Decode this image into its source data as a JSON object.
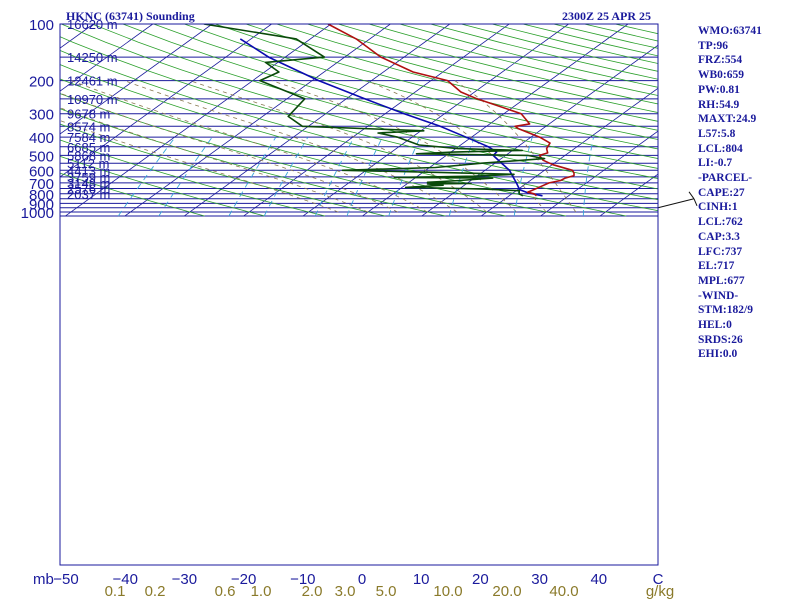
{
  "header": {
    "station": "HKNC (63741) Sounding",
    "valid_time": "2300Z 25 APR 25"
  },
  "indices": [
    "WMO:63741",
    "TP:96",
    "FRZ:554",
    "WB0:659",
    "PW:0.81",
    "RH:54.9",
    "MAXT:24.9",
    "L57:5.8",
    "LCL:804",
    "LI:-0.7",
    "-PARCEL-",
    "CAPE:27",
    "CINH:1",
    "LCL:762",
    "CAP:3.3",
    "LFC:737",
    "EL:717",
    "MPL:677",
    "-WIND-",
    "STM:182/9",
    "HEL:0",
    "SRDS:26",
    "EHI:0.0"
  ],
  "colors": {
    "frame": "#1a1a9c",
    "isobar": "#1a1a9c",
    "isotherm": "#1a1a9c",
    "dry_adiabat": "#2ca02c",
    "moist_adiabat": "#8a7a52",
    "mixing_ratio": "#3aa6d8",
    "temperature": "#b01010",
    "dewpoint": "#0a4a0a",
    "parcel": "#0a0ab0",
    "bottom_labels": "#8a7a2a",
    "height_labels": "#1a1a9c"
  },
  "chart_data": {
    "type": "skew-t log-p",
    "pressure_unit_label": "mb",
    "pressure_ticks": [
      "100",
      "200",
      "300",
      "400",
      "500",
      "600",
      "700",
      "800",
      "900",
      "1000"
    ],
    "temperature_ticks": [
      "−50",
      "−40",
      "−30",
      "−20",
      "−10",
      "0",
      "10",
      "20",
      "30",
      "40",
      "C"
    ],
    "mixing_ratio_ticks": [
      "0.1",
      "0.2",
      "0.6",
      "1.0",
      "2.0",
      "3.0",
      "5.0",
      "10.0",
      "20.0",
      "40.0",
      "g/kg"
    ],
    "height_labels": [
      {
        "p": 100,
        "label": "16620 m"
      },
      {
        "p": 150,
        "label": "14250 m"
      },
      {
        "p": 200,
        "label": "12461 m"
      },
      {
        "p": 250,
        "label": "10970 m"
      },
      {
        "p": 300,
        "label": "9678 m"
      },
      {
        "p": 350,
        "label": "8574 m"
      },
      {
        "p": 400,
        "label": "7584 m"
      },
      {
        "p": 450,
        "label": "6685 m"
      },
      {
        "p": 500,
        "label": "5868 m"
      },
      {
        "p": 550,
        "label": "5112 m"
      },
      {
        "p": 600,
        "label": "4413 m"
      },
      {
        "p": 650,
        "label": "3759 m"
      },
      {
        "p": 700,
        "label": "3148 m"
      },
      {
        "p": 750,
        "label": "2576 m"
      },
      {
        "p": 800,
        "label": "2037 m"
      }
    ],
    "temperature_profile": [
      [
        820,
        24.6
      ],
      [
        800,
        23.7
      ],
      [
        785,
        22.3
      ],
      [
        760,
        22.7
      ],
      [
        730,
        23.2
      ],
      [
        700,
        23.7
      ],
      [
        680,
        25.1
      ],
      [
        660,
        25.3
      ],
      [
        640,
        26.2
      ],
      [
        620,
        25.6
      ],
      [
        600,
        24.7
      ],
      [
        560,
        20.1
      ],
      [
        530,
        17.4
      ],
      [
        500,
        15.7
      ],
      [
        485,
        16.5
      ],
      [
        460,
        15.3
      ],
      [
        430,
        14.6
      ],
      [
        400,
        11.5
      ],
      [
        360,
        5.9
      ],
      [
        350,
        4.8
      ],
      [
        340,
        6.7
      ],
      [
        300,
        2.9
      ],
      [
        250,
        -8.0
      ],
      [
        230,
        -12.3
      ],
      [
        200,
        -17.2
      ],
      [
        180,
        -25.0
      ],
      [
        150,
        -33.9
      ],
      [
        120,
        -42.3
      ],
      [
        100,
        -50.5
      ]
    ],
    "dewpoint_profile": [
      [
        820,
        22.3
      ],
      [
        800,
        21.2
      ],
      [
        770,
        20.5
      ],
      [
        755,
        14.2
      ],
      [
        745,
        6.2
      ],
      [
        740,
        0.6
      ],
      [
        720,
        6.4
      ],
      [
        710,
        3.5
      ],
      [
        705,
        10.7
      ],
      [
        695,
        3.1
      ],
      [
        680,
        8.1
      ],
      [
        660,
        13.1
      ],
      [
        655,
        -3.6
      ],
      [
        645,
        9.4
      ],
      [
        630,
        15.8
      ],
      [
        615,
        2.0
      ],
      [
        600,
        -14.0
      ],
      [
        580,
        1.0
      ],
      [
        550,
        7.8
      ],
      [
        520,
        17.3
      ],
      [
        500,
        13.7
      ],
      [
        490,
        -5.4
      ],
      [
        480,
        0.4
      ],
      [
        470,
        11.6
      ],
      [
        460,
        0.4
      ],
      [
        440,
        -7.0
      ],
      [
        400,
        -12.4
      ],
      [
        380,
        -16.7
      ],
      [
        370,
        -9.5
      ],
      [
        350,
        -31.0
      ],
      [
        310,
        -35.7
      ],
      [
        250,
        -37.0
      ],
      [
        200,
        -48.8
      ],
      [
        180,
        -47.6
      ],
      [
        160,
        -52.1
      ],
      [
        150,
        -43.4
      ],
      [
        120,
        -52.4
      ],
      [
        100,
        -71.4
      ]
    ],
    "parcel_profile": [
      [
        820,
        25.6
      ],
      [
        790,
        22.4
      ],
      [
        760,
        20.3
      ],
      [
        700,
        18.2
      ],
      [
        600,
        14.1
      ],
      [
        500,
        7.9
      ],
      [
        480,
        7.7
      ],
      [
        450,
        5.1
      ],
      [
        400,
        -0.9
      ],
      [
        350,
        -7.8
      ],
      [
        300,
        -16.8
      ],
      [
        250,
        -26.9
      ],
      [
        200,
        -38.9
      ],
      [
        150,
        -52.8
      ],
      [
        120,
        -61.8
      ]
    ],
    "wind_barbs": [
      {
        "p": 800,
        "direction": 100,
        "speed_kt": 10
      }
    ]
  }
}
